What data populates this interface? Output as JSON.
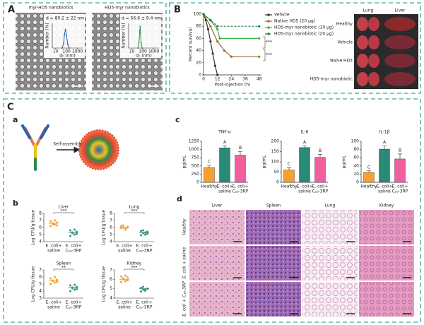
{
  "panel_A": {
    "label": "A",
    "micrographs": [
      {
        "title": "myr-HD5 nanobiotics",
        "caption": "d = 80.2 ± 22 nm",
        "y_label": "Number (%)",
        "x_label": "dₕ (nm)",
        "color": "#2f5fb3",
        "log_x": true,
        "xlim": [
          5,
          3000
        ],
        "xticks": [
          10,
          100,
          1000
        ],
        "ylim": [
          0,
          40
        ],
        "x": [
          40,
          55,
          65,
          80,
          100,
          130,
          170
        ],
        "values": [
          0,
          8,
          22,
          30,
          20,
          6,
          0
        ]
      },
      {
        "title": "HD5-myr nanobiotics",
        "caption": "d = 56.6 ± 8.4 nm",
        "y_label": "Number (%)",
        "x_label": "dₕ (nm)",
        "color": "#2e9a48",
        "log_x": true,
        "xlim": [
          5,
          3000
        ],
        "xticks": [
          10,
          100,
          1000
        ],
        "ylim": [
          0,
          40
        ],
        "x": [
          35,
          45,
          52,
          57,
          62,
          70,
          85
        ],
        "values": [
          0,
          10,
          28,
          35,
          24,
          8,
          0
        ]
      }
    ]
  },
  "panel_B": {
    "label": "B",
    "chart": {
      "type": "line",
      "y_label": "Percent survival",
      "x_label": "Post-injection (h)",
      "xlim": [
        0,
        50
      ],
      "xticks": [
        0,
        12,
        24,
        36,
        48
      ],
      "ylim": [
        0,
        100
      ],
      "yticks": [
        0,
        20,
        40,
        60,
        80,
        100
      ],
      "significance": [
        "***",
        "***"
      ],
      "series": [
        {
          "name": "Vehicle",
          "color": "#333333",
          "x": [
            0,
            2,
            4,
            6,
            8,
            10,
            12
          ],
          "values": [
            100,
            90,
            75,
            55,
            35,
            15,
            0
          ]
        },
        {
          "name": "Native HD5 (20 µg)",
          "color": "#a0682a",
          "x": [
            0,
            6,
            12,
            18,
            24,
            48
          ],
          "values": [
            100,
            80,
            55,
            40,
            30,
            30
          ]
        },
        {
          "name": "HD5-myr nanobiotic (10 µg)",
          "color": "#3fb14a",
          "x": [
            0,
            6,
            12,
            14,
            48
          ],
          "values": [
            100,
            90,
            75,
            60,
            60
          ]
        },
        {
          "name": "HD5-myr nanobiotic (20 µg)",
          "color": "#1e7d3a",
          "dashed": true,
          "x": [
            0,
            6,
            12,
            48
          ],
          "values": [
            100,
            90,
            80,
            80
          ]
        }
      ]
    },
    "organs": {
      "columns": [
        "Lung",
        "Liver"
      ],
      "rows": [
        "Healthy",
        "Vehicle",
        "Naive HD5",
        "HD5-myr nanobiotic"
      ]
    }
  },
  "panel_C": {
    "label": "C",
    "a": {
      "label": "a",
      "caption": "Self-assembly"
    },
    "c": {
      "label": "c",
      "y_label": "pg/mL",
      "colors": [
        "#f5a030",
        "#2a8a78",
        "#f060a0"
      ],
      "categories": [
        [
          "Healthy"
        ],
        [
          "E. coli+",
          "saline"
        ],
        [
          "E. coli+",
          "C₁₆-3RP"
        ]
      ],
      "charts": [
        {
          "type": "bar",
          "title": "TNF-α",
          "ylim": [
            0,
            1250
          ],
          "yticks": [
            0,
            250,
            500,
            750,
            1000,
            1250
          ],
          "values": [
            450,
            1050,
            830
          ],
          "errors": [
            70,
            60,
            110
          ],
          "letters": [
            "C",
            "A",
            "B"
          ]
        },
        {
          "type": "bar",
          "title": "IL-6",
          "ylim": [
            0,
            200
          ],
          "yticks": [
            0,
            50,
            100,
            150,
            200
          ],
          "values": [
            60,
            170,
            122
          ],
          "errors": [
            10,
            8,
            15
          ],
          "letters": [
            "C",
            "A",
            "B"
          ]
        },
        {
          "type": "bar",
          "title": "IL-1β",
          "ylim": [
            0,
            100
          ],
          "yticks": [
            0,
            20,
            40,
            60,
            80,
            100
          ],
          "values": [
            24,
            81,
            57
          ],
          "errors": [
            4,
            8,
            12
          ],
          "letters": [
            "C",
            "A",
            "B"
          ]
        }
      ]
    },
    "b": {
      "label": "b",
      "y_label": "Log CFU/g tissue",
      "colors": [
        "#f5a030",
        "#3a8f8a"
      ],
      "categories": [
        [
          "E. coli+",
          "saline"
        ],
        [
          "E. coli+",
          "C₁₆-3RP"
        ]
      ],
      "plots": [
        {
          "type": "scatter",
          "title": "Liver",
          "ylim": [
            4,
            8
          ],
          "yticks": [
            4,
            5,
            6,
            7,
            8
          ],
          "significance": "***",
          "groups": [
            {
              "values": [
                6.9,
                6.6,
                6.4,
                6.7,
                6.2,
                6.5,
                7.0,
                6.3
              ],
              "mean": 6.6
            },
            {
              "values": [
                5.6,
                5.2,
                5.0,
                5.4,
                4.8,
                5.3,
                5.7,
                5.1
              ],
              "mean": 5.3
            }
          ]
        },
        {
          "type": "scatter",
          "title": "Lung",
          "ylim": [
            4,
            8
          ],
          "yticks": [
            4,
            5,
            6,
            7,
            8
          ],
          "significance": "***",
          "groups": [
            {
              "values": [
                6.2,
                6.0,
                5.8,
                6.1,
                5.9,
                6.3,
                5.7,
                6.0
              ],
              "mean": 6.0
            },
            {
              "values": [
                5.5,
                5.2,
                5.0,
                5.4,
                4.9,
                5.6,
                5.3,
                5.1
              ],
              "mean": 5.3
            }
          ]
        },
        {
          "type": "scatter",
          "title": "Spleen",
          "ylim": [
            3,
            7
          ],
          "yticks": [
            3,
            4,
            5,
            6,
            7
          ],
          "significance": "**",
          "groups": [
            {
              "values": [
                5.8,
                5.4,
                5.2,
                5.6,
                5.0,
                5.5,
                6.0,
                5.3
              ],
              "mean": 5.5
            },
            {
              "values": [
                4.8,
                4.4,
                4.2,
                4.6,
                4.0,
                4.5,
                4.9,
                4.3
              ],
              "mean": 4.5
            }
          ]
        },
        {
          "type": "scatter",
          "title": "Kidney",
          "ylim": [
            4,
            7
          ],
          "yticks": [
            4,
            5,
            6,
            7
          ],
          "significance": "***",
          "groups": [
            {
              "values": [
                6.3,
                6.0,
                5.8,
                6.2,
                5.7,
                6.1,
                6.4,
                5.9
              ],
              "mean": 6.0
            },
            {
              "values": [
                5.1,
                4.9,
                4.8,
                5.0,
                4.7,
                5.2,
                4.9,
                5.0
              ],
              "mean": 5.0
            }
          ]
        }
      ]
    },
    "d": {
      "label": "d",
      "columns": [
        "Liver",
        "Spleen",
        "Lung",
        "Kidney"
      ],
      "rows": [
        "Healthy",
        "E. coli + saline",
        "E. coli + C₁₆-3RP"
      ]
    }
  }
}
